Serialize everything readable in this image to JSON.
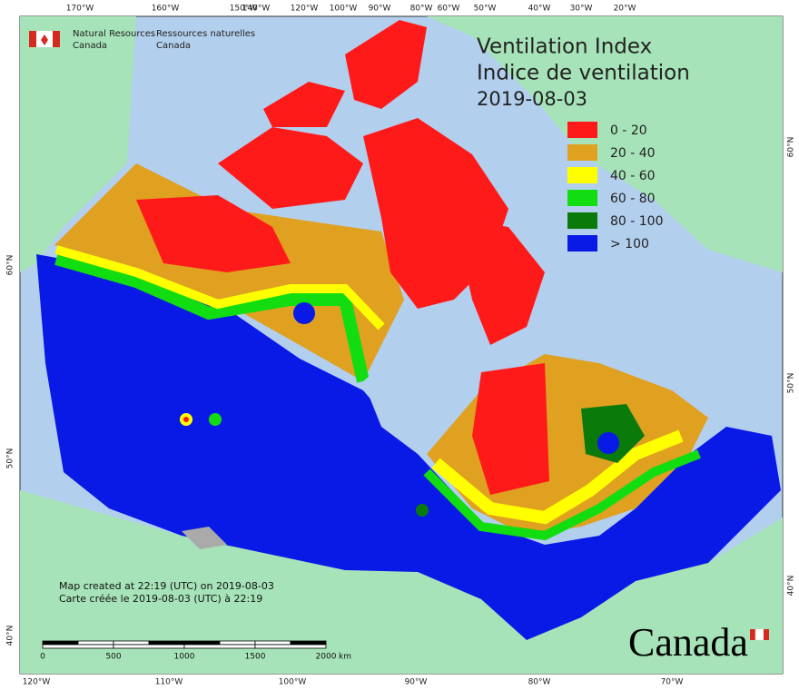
{
  "header": {
    "agency_en": [
      "Natural Resources",
      "Canada"
    ],
    "agency_fr": [
      "Ressources naturelles",
      "Canada"
    ]
  },
  "title": {
    "en": "Ventilation Index",
    "fr": "Indice de ventilation",
    "date": "2019-08-03"
  },
  "legend": [
    {
      "label": "0 - 20",
      "color": "#ff1a1a"
    },
    {
      "label": "20 - 40",
      "color": "#e0a020"
    },
    {
      "label": "40 - 60",
      "color": "#ffff00"
    },
    {
      "label": "60 - 80",
      "color": "#11dd11"
    },
    {
      "label": "80 - 100",
      "color": "#0a7a0a"
    },
    {
      "label": "> 100",
      "color": "#0a1ae6"
    }
  ],
  "graticule": {
    "top": [
      "170°W",
      "160°W",
      "150°W",
      "140°W",
      "120°W",
      "100°W",
      "90°W",
      "80°W",
      "60°W",
      "50°W",
      "40°W",
      "30°W",
      "20°W"
    ],
    "bottom": [
      "120°W",
      "110°W",
      "100°W",
      "90°W",
      "80°W",
      "70°W"
    ],
    "left": [
      "60°N",
      "50°N",
      "40°N"
    ],
    "right": [
      "60°N",
      "50°N",
      "40°N"
    ]
  },
  "footer": [
    "Map created at 22:19 (UTC) on 2019-08-03",
    "Carte créée le 2019-08-03 (UTC) à 22:19"
  ],
  "scale_bar": {
    "labels": [
      "0",
      "500",
      "1000",
      "1500",
      "2000"
    ],
    "unit": "km"
  },
  "wordmark": "Canada"
}
